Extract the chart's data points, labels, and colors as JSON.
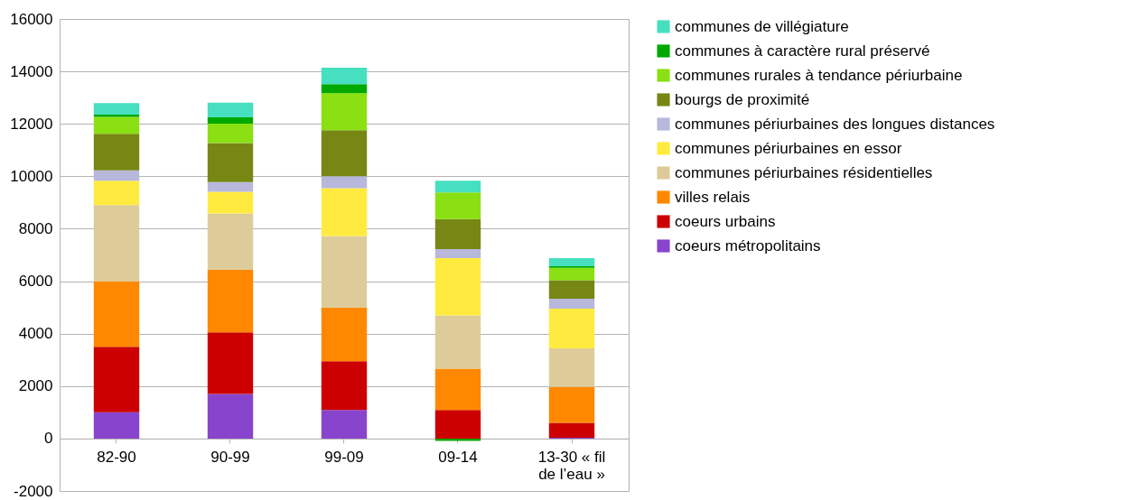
{
  "chart_data": {
    "type": "bar",
    "stacked": true,
    "categories": [
      "82-90",
      "90-99",
      "99-09",
      "09-14",
      "13-30 « fil de l’eau »"
    ],
    "series": [
      {
        "name": "coeurs métropolitains",
        "color": "#8844cc",
        "values": [
          1000,
          1700,
          1090,
          0,
          30
        ]
      },
      {
        "name": "coeurs urbains",
        "color": "#cc0000",
        "values": [
          2500,
          2350,
          1860,
          1090,
          570
        ]
      },
      {
        "name": "villes relais",
        "color": "#ff8800",
        "values": [
          2500,
          2380,
          2040,
          1570,
          1370
        ]
      },
      {
        "name": "communes périurbaines résidentielles",
        "color": "#ddcc99",
        "values": [
          2900,
          2150,
          2730,
          2030,
          1470
        ]
      },
      {
        "name": "communes périurbaines en essor",
        "color": "#ffeb3f",
        "values": [
          930,
          830,
          1830,
          2190,
          1510
        ]
      },
      {
        "name": "communes périurbaines des longues distances",
        "color": "#b8b8dc",
        "values": [
          400,
          370,
          450,
          340,
          380
        ]
      },
      {
        "name": "bourgs de proximité",
        "color": "#778714",
        "values": [
          1390,
          1490,
          1760,
          1150,
          710
        ]
      },
      {
        "name": "communes rurales à tendance périurbaine",
        "color": "#8ae012",
        "values": [
          650,
          740,
          1410,
          1010,
          470
        ]
      },
      {
        "name": "communes à caractère rural préservé",
        "color": "#00a800",
        "values": [
          80,
          240,
          340,
          -90,
          60
        ]
      },
      {
        "name": "communes de villégiature",
        "color": "#46dfbf",
        "values": [
          440,
          560,
          630,
          450,
          310
        ]
      }
    ],
    "ylim": [
      -2000,
      16000
    ],
    "yticks": [
      -2000,
      0,
      2000,
      4000,
      6000,
      8000,
      10000,
      12000,
      14000,
      16000
    ],
    "grid": "y",
    "legend": "right"
  }
}
